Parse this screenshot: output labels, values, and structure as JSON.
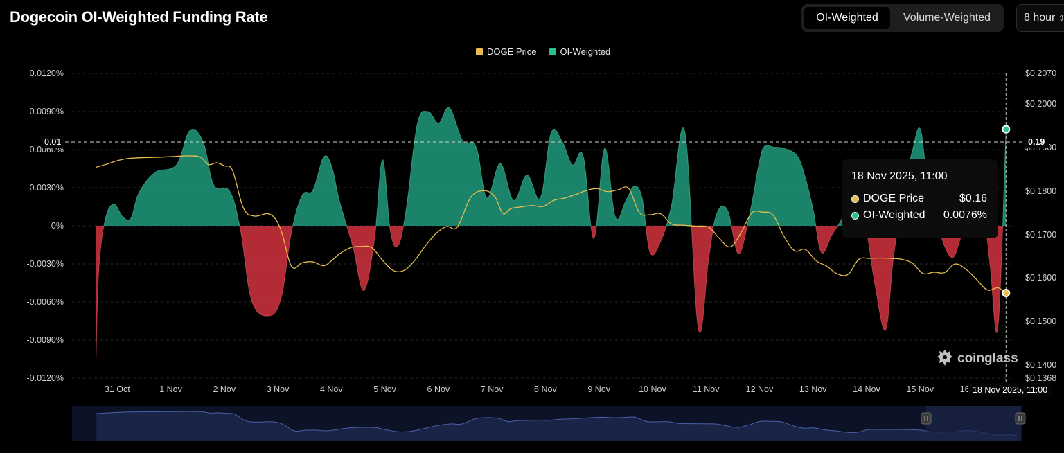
{
  "header": {
    "title": "Dogecoin OI-Weighted Funding Rate",
    "toggle": [
      {
        "label": "OI-Weighted",
        "active": true
      },
      {
        "label": "Volume-Weighted",
        "active": false
      }
    ],
    "interval": {
      "value": "8 hour"
    }
  },
  "colors": {
    "price": "#e8bd4f",
    "positive": "#1f9a7c",
    "negative": "#d1323e",
    "navigator": "#2a3a6e"
  },
  "legend": [
    {
      "label": "DOGE Price",
      "color": "#e8bd4f",
      "icon": "square-swatch"
    },
    {
      "label": "OI-Weighted",
      "color": "#2bc08f",
      "icon": "square-swatch"
    }
  ],
  "tooltip": {
    "title": "18 Nov 2025, 11:00",
    "rows": [
      {
        "label": "DOGE Price",
        "value": "$0.16",
        "dot": "#e8bd4f"
      },
      {
        "label": "OI-Weighted",
        "value": "0.0076%",
        "dot": "#2bc08f"
      }
    ]
  },
  "crosshair": {
    "left_label": "0.01",
    "right_label": "0.19",
    "date_label": "18 Nov 2025, 11:00"
  },
  "watermark": {
    "text": "coinglass",
    "icon": "coinglass-logo-icon"
  },
  "chart_data": {
    "type": "area",
    "title": "Dogecoin OI-Weighted Funding Rate",
    "grid": true,
    "legend_position": "top-center",
    "x_ticks": [
      "31 Oct",
      "1 Nov",
      "2 Nov",
      "3 Nov",
      "4 Nov",
      "5 Nov",
      "6 Nov",
      "7 Nov",
      "8 Nov",
      "9 Nov",
      "10 Nov",
      "11 Nov",
      "12 Nov",
      "13 Nov",
      "14 Nov",
      "15 Nov",
      "16 Nov",
      "1"
    ],
    "y_left": {
      "ticks": [
        "0.0120%",
        "0.0090%",
        "0.0060%",
        "0.0030%",
        "0%",
        "-0.0030%",
        "-0.0060%",
        "-0.0090%",
        "-0.0120%"
      ],
      "range": [
        -0.012,
        0.012
      ]
    },
    "y_right": {
      "ticks": [
        "$0.2070",
        "$0.2000",
        "$0.1900",
        "$0.1800",
        "$0.1700",
        "$0.1600",
        "$0.1500",
        "$0.1400",
        "$0.1368"
      ],
      "range": [
        0.1368,
        0.207
      ]
    },
    "series": [
      {
        "name": "OI-Weighted",
        "axis": "left",
        "x": [
          30.45,
          30.5,
          30.62,
          30.78,
          30.95,
          31.1,
          31.25,
          31.55,
          31.95,
          32.2,
          32.45,
          32.65,
          32.95,
          33.15,
          33.35,
          33.65,
          33.9,
          34.1,
          34.3,
          34.5,
          34.7,
          34.85,
          35.0,
          35.25,
          35.45,
          35.65,
          35.8,
          35.95,
          36.1,
          36.25,
          36.45,
          36.65,
          36.85,
          37.05,
          37.3,
          37.55,
          37.75,
          38.0,
          38.25,
          38.5,
          38.75,
          38.95,
          39.15,
          39.35,
          39.55,
          39.75,
          39.95,
          40.15,
          40.35,
          40.5,
          40.65,
          40.8,
          41.0,
          41.2,
          41.45,
          41.7,
          41.9,
          42.05,
          42.25,
          42.45,
          42.65,
          42.85,
          42.95,
          43.1,
          43.3,
          43.55,
          43.7,
          43.85,
          44.0,
          44.2,
          44.35,
          44.55,
          44.7,
          44.85,
          45.0,
          45.2,
          45.35,
          45.55,
          45.7,
          45.85,
          46.0,
          46.25,
          46.45,
          46.6,
          46.75,
          46.9,
          47.0,
          47.15,
          47.3,
          47.45
        ],
        "values": [
          -0.0104,
          -0.0035,
          0.0005,
          0.0017,
          0.0007,
          0.0006,
          0.0026,
          0.0042,
          0.0048,
          0.0075,
          0.0066,
          0.0032,
          0.0027,
          -0.0004,
          -0.0058,
          -0.0071,
          -0.0058,
          -0.0005,
          0.0024,
          0.0028,
          0.0054,
          0.0047,
          0.0019,
          -0.0017,
          -0.0051,
          -0.0011,
          0.0052,
          -0.0005,
          -0.0015,
          0.0015,
          0.008,
          0.009,
          0.0081,
          0.0093,
          0.0067,
          0.0062,
          0.0022,
          0.0049,
          0.002,
          0.004,
          0.0022,
          0.0073,
          0.0067,
          0.0048,
          0.0055,
          -0.001,
          0.0061,
          0.0007,
          0.002,
          0.0031,
          0.0022,
          -0.0021,
          -0.0012,
          0.0016,
          0.0074,
          -0.0081,
          -0.0024,
          0.001,
          0.0012,
          -0.0022,
          0.0007,
          0.0052,
          0.0063,
          0.0062,
          0.0061,
          0.0055,
          0.0038,
          0.0012,
          -0.0021,
          -0.0007,
          0.0003,
          0.0019,
          0.0021,
          -0.0005,
          -0.0046,
          -0.0082,
          -0.0024,
          0.003,
          0.0059,
          0.0076,
          0.003,
          -0.001,
          -0.0025,
          -0.001,
          0.0006,
          0.002,
          0.0025,
          -0.003,
          -0.008,
          0.0076
        ]
      },
      {
        "name": "DOGE Price",
        "axis": "right",
        "x": [
          30.45,
          30.65,
          30.85,
          31.05,
          31.35,
          31.65,
          31.95,
          32.2,
          32.4,
          32.55,
          32.7,
          32.85,
          33.0,
          33.2,
          33.4,
          33.7,
          33.9,
          34.1,
          34.3,
          34.5,
          34.7,
          34.85,
          35.0,
          35.2,
          35.4,
          35.6,
          35.8,
          36.0,
          36.2,
          36.4,
          36.6,
          36.8,
          37.0,
          37.2,
          37.45,
          37.7,
          37.9,
          38.05,
          38.2,
          38.4,
          38.6,
          38.8,
          39.0,
          39.2,
          39.4,
          39.6,
          39.8,
          40.0,
          40.2,
          40.4,
          40.6,
          40.8,
          41.0,
          41.2,
          41.4,
          41.65,
          41.9,
          42.1,
          42.3,
          42.5,
          42.7,
          42.9,
          43.1,
          43.3,
          43.5,
          43.7,
          43.9,
          44.1,
          44.3,
          44.5,
          44.7,
          44.9,
          45.1,
          45.3,
          45.5,
          45.7,
          45.9,
          46.1,
          46.3,
          46.5,
          46.7,
          46.9,
          47.1,
          47.3,
          47.45
        ],
        "values": [
          0.1855,
          0.1862,
          0.187,
          0.1875,
          0.1877,
          0.1878,
          0.188,
          0.1881,
          0.1878,
          0.1861,
          0.1865,
          0.1858,
          0.1847,
          0.1762,
          0.1743,
          0.1747,
          0.1712,
          0.1627,
          0.1635,
          0.1637,
          0.1628,
          0.164,
          0.1656,
          0.167,
          0.1673,
          0.167,
          0.1641,
          0.1617,
          0.1617,
          0.164,
          0.1674,
          0.1703,
          0.1719,
          0.1718,
          0.1786,
          0.1801,
          0.1787,
          0.1749,
          0.176,
          0.1764,
          0.1767,
          0.1765,
          0.1779,
          0.1784,
          0.1792,
          0.1801,
          0.1806,
          0.1799,
          0.1803,
          0.1806,
          0.1751,
          0.1746,
          0.1748,
          0.1725,
          0.1722,
          0.172,
          0.1717,
          0.1691,
          0.1672,
          0.1705,
          0.175,
          0.1752,
          0.1745,
          0.1697,
          0.1663,
          0.1666,
          0.164,
          0.1627,
          0.1609,
          0.1608,
          0.1643,
          0.1645,
          0.1646,
          0.1645,
          0.1643,
          0.1634,
          0.161,
          0.1613,
          0.1612,
          0.1632,
          0.162,
          0.1596,
          0.1572,
          0.1577,
          0.1565
        ]
      }
    ]
  }
}
